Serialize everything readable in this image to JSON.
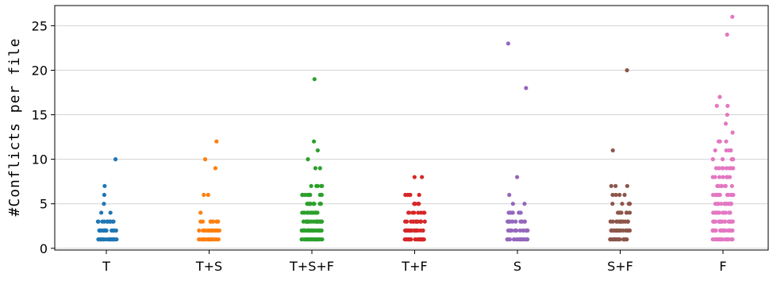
{
  "chart_data": {
    "type": "scatter",
    "subtype": "strip",
    "title": "",
    "xlabel": "",
    "ylabel": "#Conflicts per file",
    "categories": [
      "T",
      "T+S",
      "T+S+F",
      "T+F",
      "S",
      "S+F",
      "F"
    ],
    "ylim": [
      0,
      27
    ],
    "yticks": [
      0,
      5,
      10,
      15,
      20,
      25
    ],
    "grid": {
      "y": true,
      "x": false
    },
    "legend": "none",
    "colors": [
      "#1f77b4",
      "#ff7f0e",
      "#2ca02c",
      "#d62728",
      "#9467bd",
      "#8c564b",
      "#e377c2"
    ],
    "series": [
      {
        "category": "T",
        "values": [
          1,
          1,
          1,
          1,
          1,
          1,
          1,
          1,
          1,
          1,
          1,
          1,
          1,
          1,
          1,
          1,
          1,
          1,
          1,
          1,
          1,
          1,
          1,
          1,
          1,
          1,
          1,
          1,
          2,
          2,
          2,
          2,
          2,
          2,
          2,
          2,
          2,
          2,
          2,
          2,
          2,
          2,
          3,
          3,
          3,
          3,
          3,
          3,
          3,
          3,
          3,
          3,
          4,
          4,
          5,
          6,
          7,
          10
        ]
      },
      {
        "category": "T+S",
        "values": [
          1,
          1,
          1,
          1,
          1,
          1,
          1,
          1,
          1,
          1,
          1,
          1,
          1,
          1,
          1,
          1,
          1,
          1,
          1,
          1,
          1,
          1,
          1,
          1,
          2,
          2,
          2,
          2,
          2,
          2,
          2,
          2,
          2,
          2,
          2,
          2,
          2,
          2,
          3,
          3,
          3,
          3,
          3,
          3,
          3,
          3,
          4,
          6,
          6,
          9,
          10,
          12
        ]
      },
      {
        "category": "T+S+F",
        "values": [
          1,
          1,
          1,
          1,
          1,
          1,
          1,
          1,
          1,
          1,
          1,
          1,
          1,
          1,
          1,
          1,
          1,
          1,
          1,
          1,
          1,
          1,
          1,
          1,
          1,
          1,
          1,
          1,
          1,
          1,
          2,
          2,
          2,
          2,
          2,
          2,
          2,
          2,
          2,
          2,
          2,
          2,
          2,
          2,
          2,
          2,
          2,
          2,
          2,
          2,
          2,
          2,
          2,
          2,
          3,
          3,
          3,
          3,
          3,
          3,
          3,
          3,
          3,
          3,
          3,
          3,
          3,
          3,
          3,
          3,
          3,
          3,
          3,
          3,
          4,
          4,
          4,
          4,
          4,
          4,
          4,
          4,
          4,
          4,
          4,
          4,
          4,
          4,
          4,
          4,
          5,
          5,
          5,
          5,
          5,
          5,
          5,
          5,
          5,
          5,
          5,
          5,
          6,
          6,
          6,
          6,
          6,
          6,
          6,
          6,
          6,
          6,
          6,
          7,
          7,
          7,
          7,
          7,
          9,
          9,
          10,
          11,
          12,
          19
        ]
      },
      {
        "category": "T+F",
        "values": [
          1,
          1,
          1,
          1,
          1,
          1,
          1,
          1,
          1,
          1,
          1,
          1,
          1,
          1,
          1,
          1,
          1,
          1,
          1,
          1,
          1,
          1,
          1,
          1,
          1,
          1,
          1,
          1,
          2,
          2,
          2,
          2,
          2,
          2,
          2,
          2,
          2,
          2,
          2,
          2,
          2,
          2,
          2,
          2,
          2,
          2,
          3,
          3,
          3,
          3,
          3,
          3,
          3,
          3,
          3,
          3,
          3,
          3,
          3,
          4,
          4,
          4,
          4,
          4,
          4,
          4,
          4,
          5,
          5,
          5,
          5,
          5,
          5,
          6,
          6,
          6,
          6,
          6,
          8,
          8
        ]
      },
      {
        "category": "S",
        "values": [
          1,
          1,
          1,
          1,
          1,
          1,
          1,
          1,
          1,
          1,
          1,
          1,
          1,
          1,
          1,
          1,
          1,
          1,
          1,
          1,
          1,
          1,
          2,
          2,
          2,
          2,
          2,
          2,
          2,
          2,
          2,
          2,
          2,
          2,
          2,
          2,
          3,
          3,
          3,
          3,
          3,
          3,
          3,
          3,
          3,
          3,
          4,
          4,
          4,
          4,
          4,
          4,
          4,
          4,
          4,
          5,
          5,
          6,
          8,
          18,
          23
        ]
      },
      {
        "category": "S+F",
        "values": [
          1,
          1,
          1,
          1,
          1,
          1,
          1,
          1,
          1,
          1,
          1,
          1,
          1,
          1,
          1,
          1,
          1,
          1,
          1,
          1,
          1,
          2,
          2,
          2,
          2,
          2,
          2,
          2,
          2,
          2,
          2,
          2,
          2,
          2,
          2,
          2,
          2,
          2,
          2,
          3,
          3,
          3,
          3,
          3,
          3,
          3,
          3,
          3,
          3,
          3,
          3,
          3,
          4,
          4,
          4,
          4,
          4,
          4,
          4,
          4,
          4,
          4,
          4,
          5,
          5,
          5,
          5,
          5,
          6,
          6,
          6,
          6,
          7,
          7,
          7,
          11,
          20
        ]
      },
      {
        "category": "F",
        "values": [
          1,
          1,
          1,
          1,
          1,
          1,
          1,
          1,
          1,
          1,
          1,
          1,
          1,
          1,
          1,
          1,
          1,
          1,
          1,
          1,
          1,
          1,
          1,
          1,
          1,
          2,
          2,
          2,
          2,
          2,
          2,
          2,
          2,
          2,
          2,
          2,
          2,
          2,
          2,
          2,
          2,
          2,
          2,
          2,
          2,
          2,
          2,
          2,
          2,
          3,
          3,
          3,
          3,
          3,
          3,
          3,
          3,
          3,
          3,
          3,
          3,
          3,
          3,
          3,
          3,
          3,
          3,
          3,
          3,
          4,
          4,
          4,
          4,
          4,
          4,
          4,
          4,
          4,
          4,
          4,
          4,
          4,
          4,
          4,
          4,
          4,
          4,
          5,
          5,
          5,
          5,
          5,
          5,
          5,
          5,
          5,
          5,
          5,
          5,
          5,
          5,
          6,
          6,
          6,
          6,
          6,
          6,
          6,
          6,
          6,
          6,
          6,
          6,
          7,
          7,
          7,
          7,
          7,
          7,
          7,
          7,
          7,
          7,
          8,
          8,
          8,
          8,
          8,
          8,
          8,
          8,
          9,
          9,
          9,
          9,
          9,
          9,
          9,
          9,
          10,
          10,
          10,
          10,
          10,
          10,
          11,
          11,
          11,
          11,
          12,
          12,
          12,
          13,
          14,
          15,
          16,
          16,
          17,
          24,
          26
        ]
      }
    ]
  }
}
